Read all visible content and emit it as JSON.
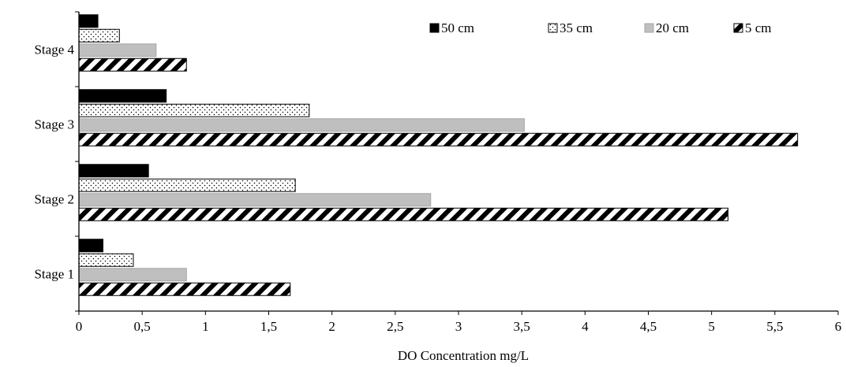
{
  "chart_data": {
    "type": "bar",
    "orientation": "horizontal",
    "title": "",
    "xlabel": "DO Concentration mg/L",
    "ylabel": "",
    "xlim": [
      0,
      6
    ],
    "x_ticks": [
      "0",
      "0,5",
      "1",
      "1,5",
      "2",
      "2,5",
      "3",
      "3,5",
      "4",
      "4,5",
      "5",
      "5,5",
      "6"
    ],
    "categories": [
      "Stage 1",
      "Stage 2",
      "Stage 3",
      "Stage 4"
    ],
    "grid": false,
    "legend_position": "top-right",
    "series": [
      {
        "name": "50 cm",
        "values": [
          0.19,
          0.55,
          0.69,
          0.15
        ],
        "pattern": "solid-black"
      },
      {
        "name": "35 cm",
        "values": [
          0.43,
          1.71,
          1.82,
          0.32
        ],
        "pattern": "dots"
      },
      {
        "name": "20 cm",
        "values": [
          0.85,
          2.78,
          3.52,
          0.61
        ],
        "pattern": "solid-gray"
      },
      {
        "name": "5 cm",
        "values": [
          1.67,
          5.13,
          5.68,
          0.85
        ],
        "pattern": "diagonal-stripes"
      }
    ],
    "colors": {
      "black": "#000000",
      "gray": "#bfbfbf",
      "outline": "#000000",
      "axis": "#000000"
    }
  }
}
